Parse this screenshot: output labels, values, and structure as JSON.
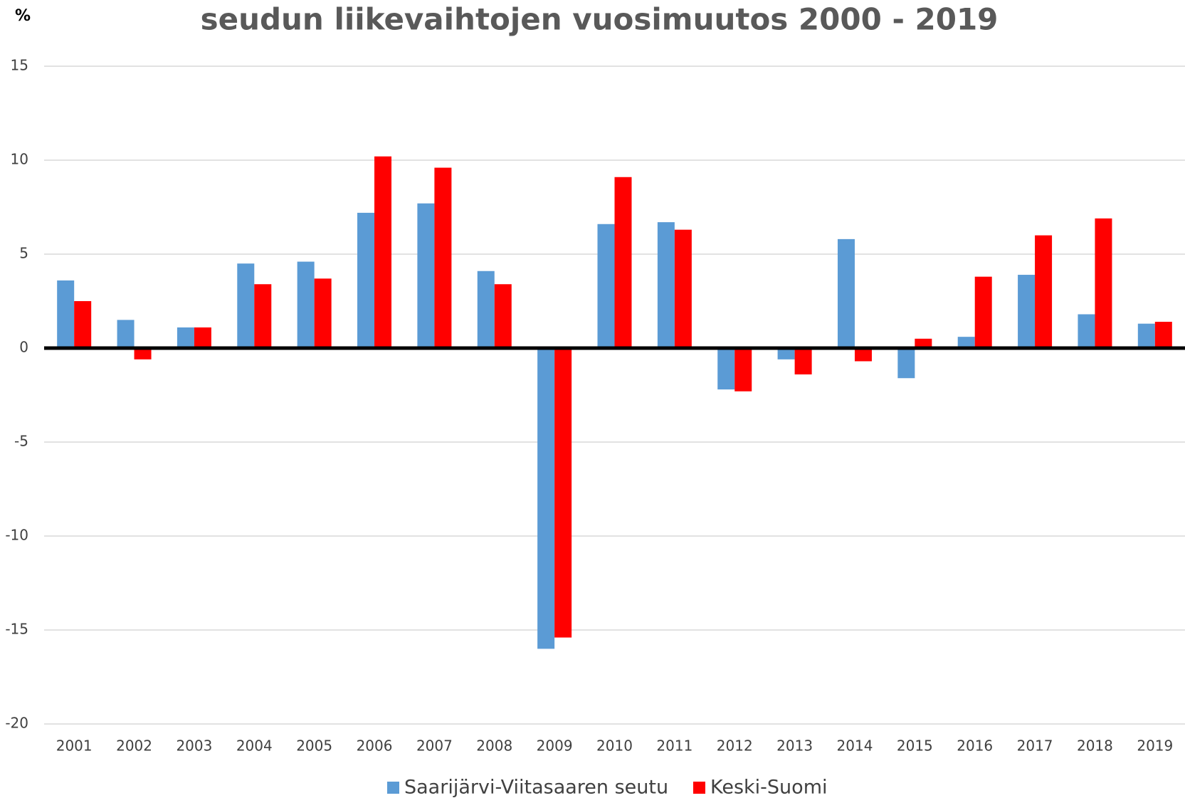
{
  "chart_data": {
    "type": "bar",
    "title": "seudun liikevaihtojen vuosimuutos 2000 - 2019",
    "y_label": "%",
    "categories": [
      "2001",
      "2002",
      "2003",
      "2004",
      "2005",
      "2006",
      "2007",
      "2008",
      "2009",
      "2010",
      "2011",
      "2012",
      "2013",
      "2014",
      "2015",
      "2016",
      "2017",
      "2018",
      "2019"
    ],
    "series": [
      {
        "name": "Saarijärvi-Viitasaaren seutu",
        "color": "#5b9bd5",
        "values": [
          3.6,
          1.5,
          1.1,
          4.5,
          4.6,
          7.2,
          7.7,
          4.1,
          -16.0,
          6.6,
          6.7,
          -2.2,
          -0.6,
          5.8,
          -1.6,
          0.6,
          3.9,
          1.8,
          1.3
        ]
      },
      {
        "name": "Keski-Suomi",
        "color": "#ff0000",
        "values": [
          2.5,
          -0.6,
          1.1,
          3.4,
          3.7,
          10.2,
          9.6,
          3.4,
          -15.4,
          9.1,
          6.3,
          -2.3,
          -1.4,
          -0.7,
          0.5,
          3.8,
          6.0,
          6.9,
          1.4
        ]
      }
    ],
    "ylim": [
      -20,
      15
    ],
    "yticks": [
      15,
      10,
      5,
      0,
      -5,
      -10,
      -15,
      -20
    ],
    "grid": true,
    "legend": "bottom"
  }
}
